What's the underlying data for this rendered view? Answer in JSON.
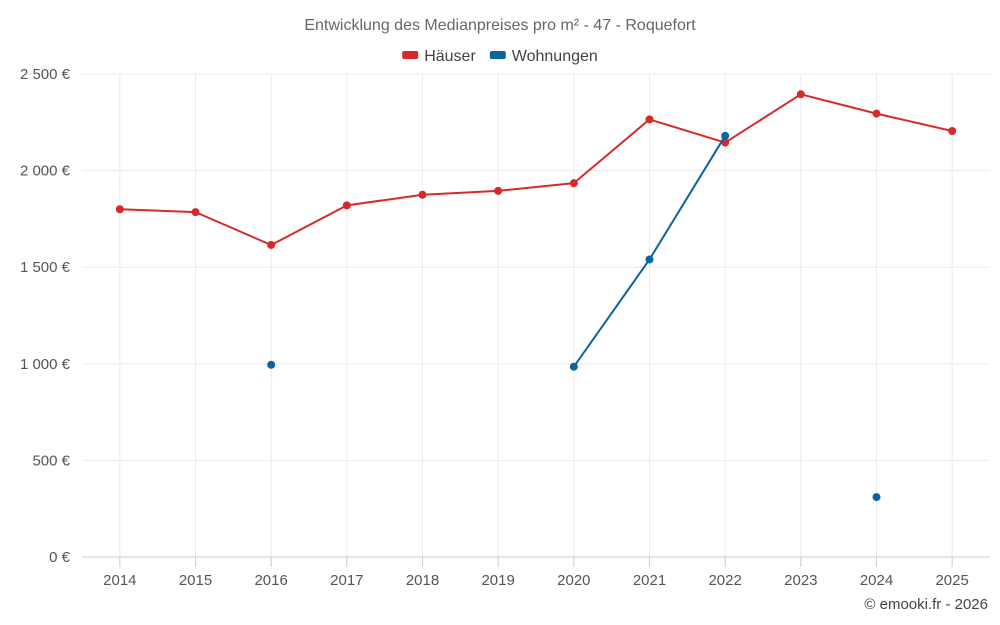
{
  "chart_data": {
    "type": "line",
    "title": "Entwicklung des Medianpreises pro m² - 47 - Roquefort",
    "categories": [
      "2014",
      "2015",
      "2016",
      "2017",
      "2018",
      "2019",
      "2020",
      "2021",
      "2022",
      "2023",
      "2024",
      "2025"
    ],
    "ylim": [
      0,
      2500
    ],
    "yticks": [
      0,
      500,
      1000,
      1500,
      2000,
      2500
    ],
    "ytick_labels": [
      "0 €",
      "500 €",
      "1 000 €",
      "1 500 €",
      "2 000 €",
      "2 500 €"
    ],
    "grid": true,
    "legend_position": "top-center",
    "series": [
      {
        "name": "Häuser",
        "color": "#d62a2a",
        "values": [
          1800,
          1785,
          1615,
          1820,
          1875,
          1895,
          1935,
          2265,
          2145,
          2395,
          2295,
          2205
        ]
      },
      {
        "name": "Wohnungen",
        "color": "#0a64a0",
        "values": [
          null,
          null,
          995,
          null,
          null,
          null,
          985,
          1540,
          2180,
          null,
          310,
          null
        ]
      }
    ]
  },
  "credit": "© emooki.fr - 2026"
}
